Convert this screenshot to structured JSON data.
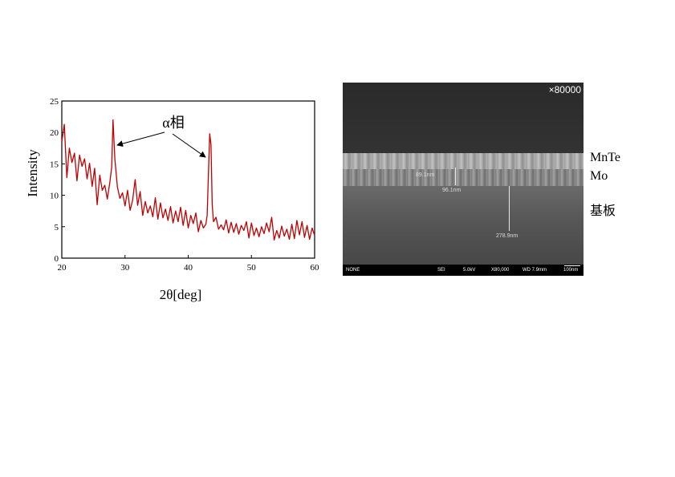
{
  "chart_data": {
    "type": "line",
    "xlabel": "2θ[deg]",
    "ylabel": "Intensity",
    "xlim": [
      20,
      60
    ],
    "ylim": [
      0,
      25
    ],
    "xticks": [
      20,
      30,
      40,
      50,
      60
    ],
    "yticks": [
      0,
      5,
      10,
      15,
      20,
      25
    ],
    "grid": false,
    "series": [
      {
        "color": "#c00000",
        "x": [
          20.0,
          20.4,
          20.8,
          21.2,
          21.6,
          22.0,
          22.4,
          22.8,
          23.2,
          23.6,
          24.0,
          24.4,
          24.8,
          25.2,
          25.6,
          26.0,
          26.4,
          26.8,
          27.2,
          27.6,
          27.9,
          28.1,
          28.4,
          28.8,
          29.2,
          29.6,
          30.0,
          30.4,
          30.8,
          31.2,
          31.6,
          32.0,
          32.4,
          32.8,
          33.2,
          33.6,
          34.0,
          34.4,
          34.8,
          35.2,
          35.6,
          36.0,
          36.4,
          36.8,
          37.2,
          37.6,
          38.0,
          38.4,
          38.8,
          39.2,
          39.6,
          40.0,
          40.4,
          40.8,
          41.2,
          41.6,
          42.0,
          42.4,
          42.8,
          43.0,
          43.2,
          43.4,
          43.6,
          43.8,
          44.0,
          44.4,
          44.8,
          45.2,
          45.6,
          46.0,
          46.4,
          46.8,
          47.2,
          47.6,
          48.0,
          48.4,
          48.8,
          49.2,
          49.6,
          50.0,
          50.4,
          50.8,
          51.2,
          51.6,
          52.0,
          52.4,
          52.8,
          53.2,
          53.6,
          54.0,
          54.4,
          54.8,
          55.2,
          55.6,
          56.0,
          56.4,
          56.8,
          57.2,
          57.6,
          58.0,
          58.4,
          58.8,
          59.2,
          59.6,
          60.0
        ],
        "values": [
          18.5,
          21.3,
          12.8,
          17.5,
          15.2,
          16.7,
          12.3,
          16.4,
          14.6,
          15.8,
          12.6,
          15.1,
          11.4,
          14.3,
          8.5,
          13.2,
          10.8,
          11.6,
          9.4,
          12.1,
          14.5,
          22.0,
          15.8,
          11.3,
          9.5,
          10.4,
          8.3,
          10.8,
          7.6,
          9.2,
          12.5,
          8.4,
          10.6,
          6.8,
          9.0,
          7.2,
          8.3,
          6.6,
          9.6,
          6.2,
          8.8,
          6.4,
          7.8,
          6.0,
          8.2,
          5.6,
          7.5,
          5.8,
          8.1,
          5.2,
          7.6,
          4.8,
          6.8,
          5.5,
          7.2,
          4.2,
          6.0,
          4.8,
          5.4,
          6.8,
          13.5,
          19.8,
          18.0,
          8.5,
          5.8,
          6.5,
          4.6,
          5.3,
          4.5,
          6.1,
          4.0,
          5.7,
          4.1,
          5.5,
          3.8,
          5.2,
          4.4,
          5.8,
          3.2,
          5.6,
          3.6,
          4.8,
          3.4,
          5.0,
          3.9,
          5.6,
          4.2,
          6.5,
          2.9,
          4.4,
          3.2,
          5.1,
          3.5,
          4.6,
          3.0,
          5.4,
          3.1,
          6.0,
          3.7,
          5.8,
          3.3,
          5.2,
          3.0,
          4.8,
          3.6
        ]
      }
    ],
    "annotations": [
      {
        "text": "α相",
        "target_peaks_x": [
          28.2,
          43.4
        ]
      }
    ]
  },
  "sem_image": {
    "magnification": "×80000",
    "measurements": [
      "89.1nm",
      "96.1nm",
      "278.9nm"
    ],
    "info_bar": [
      "NONE",
      "SEI",
      "5.0kV",
      "X80,000",
      "WD 7.9mm",
      "100nm"
    ]
  },
  "layer_labels": [
    "MnTe",
    "Mo",
    "基板"
  ]
}
